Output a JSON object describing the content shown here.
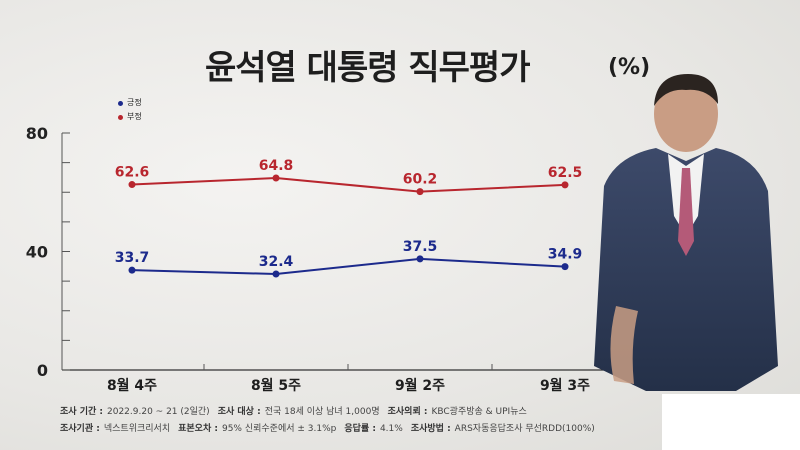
{
  "title": "윤석열 대통령 직무평가",
  "unit": "(%)",
  "legend": {
    "positive": "긍정",
    "negative": "부정"
  },
  "colors": {
    "positive": "#1c2a8c",
    "negative": "#b8262e"
  },
  "chart_data": {
    "type": "line",
    "title": "윤석열 대통령 직무평가",
    "categories": [
      "8월 4주",
      "8월 5주",
      "9월 2주",
      "9월 3주"
    ],
    "series": [
      {
        "name": "긍정",
        "values": [
          33.7,
          32.4,
          37.5,
          34.9
        ]
      },
      {
        "name": "부정",
        "values": [
          62.6,
          64.8,
          60.2,
          62.5
        ]
      }
    ],
    "y_ticks": [
      "0",
      "40",
      "80"
    ],
    "ylim": [
      0,
      80
    ],
    "grid": false,
    "legend_position": "top-left"
  },
  "footer": {
    "row1": [
      {
        "label": "조사 기간 :",
        "value": "2022.9.20 ~ 21 (2일간)"
      },
      {
        "label": "조사 대상 :",
        "value": "전국 18세 이상 남녀 1,000명"
      },
      {
        "label": "조사의뢰 :",
        "value": "KBC광주방송 & UPI뉴스"
      }
    ],
    "row2": [
      {
        "label": "조사기관 :",
        "value": "넥스트위크리서치"
      },
      {
        "label": "표본오차 :",
        "value": "95% 신뢰수준에서 ± 3.1%p"
      },
      {
        "label": "응답률 :",
        "value": "4.1%"
      },
      {
        "label": "조사방법 :",
        "value": "ARS자동응답조사 무선RDD(100%)"
      }
    ]
  }
}
